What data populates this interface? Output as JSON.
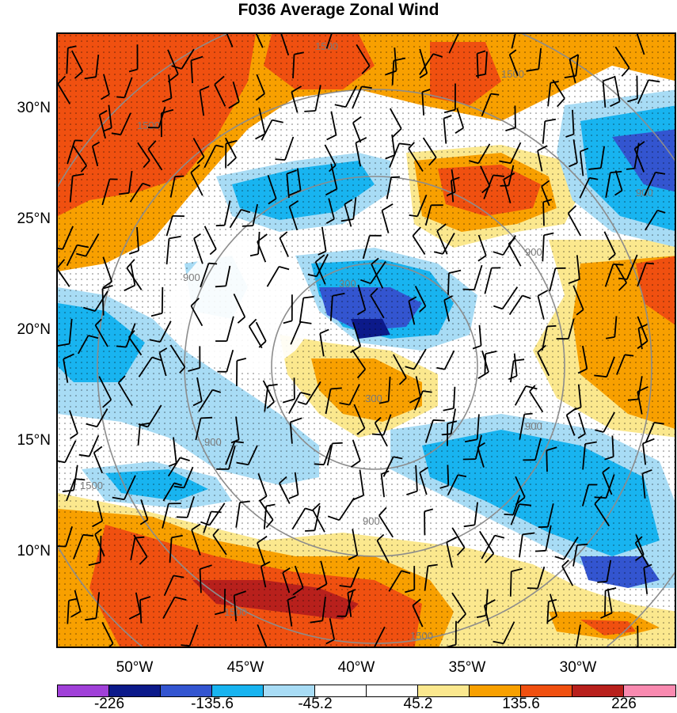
{
  "title": "F036 Average Zonal Wind",
  "lat_labels": [
    "30°N",
    "25°N",
    "20°N",
    "15°N",
    "10°N"
  ],
  "lon_labels": [
    "50°W",
    "45°W",
    "40°W",
    "35°W",
    "30°W"
  ],
  "contour_labels": [
    "1500",
    "1500",
    "900",
    "900",
    "900",
    "900",
    "900",
    "300",
    "300",
    "1500",
    "1500",
    "1500",
    "1500",
    "900"
  ],
  "colorbar": {
    "colors": [
      "#a040d8",
      "#0c1a8a",
      "#3355d0",
      "#18b4f0",
      "#a8dcf5",
      "#ffffff",
      "#ffffff",
      "#fbe88e",
      "#f8a000",
      "#f05010",
      "#b8201c",
      "#f98ab0"
    ],
    "labels": [
      "-226",
      "-135.6",
      "-45.2",
      "45.2",
      "135.6",
      "226"
    ]
  },
  "colors": {
    "red": "#f05010",
    "orange": "#f8a000",
    "yellow": "#fbe88e",
    "lightblue": "#a8dcf5",
    "blue": "#18b4f0",
    "darkblue": "#3355d0",
    "navy": "#0c1a8a",
    "darkred": "#b8201c"
  }
}
